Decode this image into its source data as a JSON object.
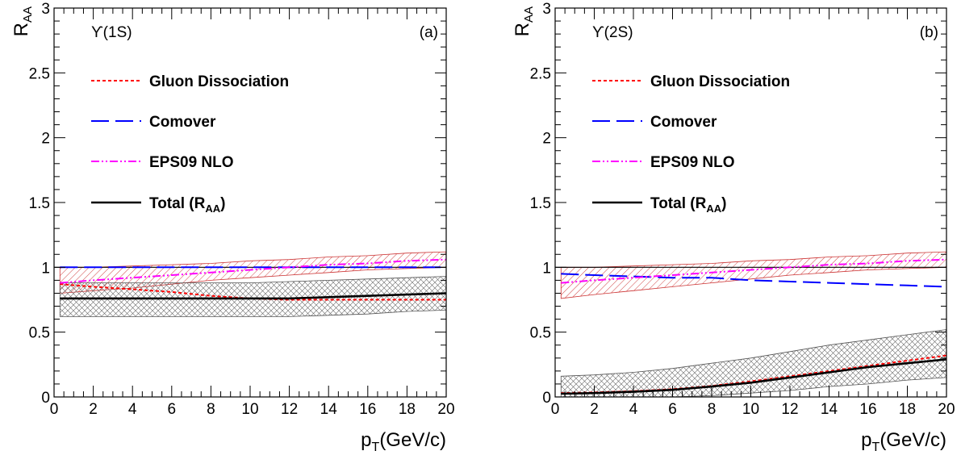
{
  "chart_data": [
    {
      "type": "line",
      "panel_label": "(a)",
      "state_label": "ϒ(1S)",
      "xlabel": {
        "main": "p",
        "sub": "T",
        "unit": "(GeV/c)"
      },
      "ylabel": {
        "main": "R",
        "sub": "AA"
      },
      "xlim": [
        0,
        20
      ],
      "ylim": [
        0,
        3
      ],
      "x_ticks": [
        "0",
        "2",
        "4",
        "6",
        "8",
        "10",
        "12",
        "14",
        "16",
        "18",
        "20"
      ],
      "y_ticks": [
        "0",
        "0.5",
        "1",
        "1.5",
        "2",
        "2.5",
        "3"
      ],
      "legend": [
        {
          "label": "Gluon Dissociation",
          "color": "#ff0000",
          "style": "dotted"
        },
        {
          "label": "Comover",
          "color": "#0000ff",
          "style": "dashed"
        },
        {
          "label": "EPS09 NLO",
          "color": "#ff00ff",
          "style": "dashdotdot"
        },
        {
          "label": "Total (R",
          "sub": "AA",
          "suffix": ")",
          "color": "#000000",
          "style": "solid"
        }
      ],
      "x": [
        0.3,
        2,
        4,
        6,
        8,
        10,
        12,
        14,
        16,
        18,
        20
      ],
      "series": [
        {
          "name": "Gluon Dissociation",
          "values": [
            0.87,
            0.85,
            0.83,
            0.81,
            0.78,
            0.76,
            0.75,
            0.75,
            0.75,
            0.75,
            0.75
          ]
        },
        {
          "name": "Comover",
          "values": [
            1.0,
            1.0,
            1.0,
            1.0,
            1.0,
            1.0,
            1.0,
            1.0,
            1.0,
            1.0,
            1.0
          ]
        },
        {
          "name": "EPS09 NLO",
          "values": [
            0.88,
            0.9,
            0.92,
            0.94,
            0.96,
            0.98,
            1.0,
            1.02,
            1.03,
            1.05,
            1.06
          ]
        },
        {
          "name": "Total (R",
          "values": [
            0.76,
            0.76,
            0.76,
            0.76,
            0.76,
            0.76,
            0.76,
            0.77,
            0.78,
            0.79,
            0.8
          ]
        }
      ],
      "bands": [
        {
          "of": "EPS09 NLO",
          "color": "#cc3333",
          "lower": [
            0.8,
            0.82,
            0.84,
            0.87,
            0.9,
            0.92,
            0.94,
            0.96,
            0.98,
            0.99,
            1.0
          ],
          "upper": [
            1.0,
            1.0,
            1.01,
            1.02,
            1.03,
            1.05,
            1.06,
            1.08,
            1.09,
            1.11,
            1.12
          ]
        },
        {
          "of": "Total (R",
          "color": "#555555",
          "lower": [
            0.62,
            0.62,
            0.62,
            0.62,
            0.62,
            0.62,
            0.62,
            0.63,
            0.64,
            0.66,
            0.67
          ],
          "upper": [
            0.88,
            0.88,
            0.88,
            0.88,
            0.88,
            0.88,
            0.89,
            0.9,
            0.91,
            0.92,
            0.93
          ]
        }
      ]
    },
    {
      "type": "line",
      "panel_label": "(b)",
      "state_label": "ϒ(2S)",
      "xlabel": {
        "main": "p",
        "sub": "T",
        "unit": "(GeV/c)"
      },
      "ylabel": {
        "main": "R",
        "sub": "AA"
      },
      "xlim": [
        0,
        20
      ],
      "ylim": [
        0,
        3
      ],
      "x_ticks": [
        "0",
        "2",
        "4",
        "6",
        "8",
        "10",
        "12",
        "14",
        "16",
        "18",
        "20"
      ],
      "y_ticks": [
        "0",
        "0.5",
        "1",
        "1.5",
        "2",
        "2.5",
        "3"
      ],
      "legend": [
        {
          "label": "Gluon Dissociation",
          "color": "#ff0000",
          "style": "dotted"
        },
        {
          "label": "Comover",
          "color": "#0000ff",
          "style": "dashed"
        },
        {
          "label": "EPS09 NLO",
          "color": "#ff00ff",
          "style": "dashdotdot"
        },
        {
          "label": "Total (R",
          "sub": "AA",
          "suffix": ")",
          "color": "#000000",
          "style": "solid"
        }
      ],
      "x": [
        0.3,
        2,
        4,
        6,
        8,
        10,
        12,
        14,
        16,
        18,
        20
      ],
      "series": [
        {
          "name": "Gluon Dissociation",
          "values": [
            0.03,
            0.035,
            0.045,
            0.06,
            0.085,
            0.12,
            0.16,
            0.2,
            0.24,
            0.28,
            0.32
          ]
        },
        {
          "name": "Comover",
          "values": [
            0.95,
            0.94,
            0.93,
            0.92,
            0.92,
            0.9,
            0.89,
            0.88,
            0.87,
            0.86,
            0.85
          ]
        },
        {
          "name": "EPS09 NLO",
          "values": [
            0.88,
            0.9,
            0.92,
            0.94,
            0.96,
            0.98,
            1.0,
            1.02,
            1.03,
            1.05,
            1.06
          ]
        },
        {
          "name": "Total (R",
          "values": [
            0.025,
            0.03,
            0.04,
            0.055,
            0.08,
            0.11,
            0.15,
            0.19,
            0.23,
            0.26,
            0.29
          ]
        }
      ],
      "bands": [
        {
          "of": "EPS09 NLO",
          "color": "#cc3333",
          "lower": [
            0.76,
            0.79,
            0.82,
            0.85,
            0.88,
            0.91,
            0.94,
            0.96,
            0.98,
            0.99,
            1.0
          ],
          "upper": [
            1.0,
            1.0,
            1.01,
            1.02,
            1.03,
            1.05,
            1.06,
            1.08,
            1.09,
            1.11,
            1.12
          ]
        },
        {
          "of": "Total (R",
          "color": "#555555",
          "lower": [
            0.0,
            0.0,
            0.0,
            0.0,
            0.01,
            0.03,
            0.05,
            0.08,
            0.1,
            0.13,
            0.15
          ],
          "upper": [
            0.16,
            0.17,
            0.19,
            0.22,
            0.26,
            0.3,
            0.35,
            0.4,
            0.44,
            0.48,
            0.52
          ]
        }
      ]
    }
  ]
}
